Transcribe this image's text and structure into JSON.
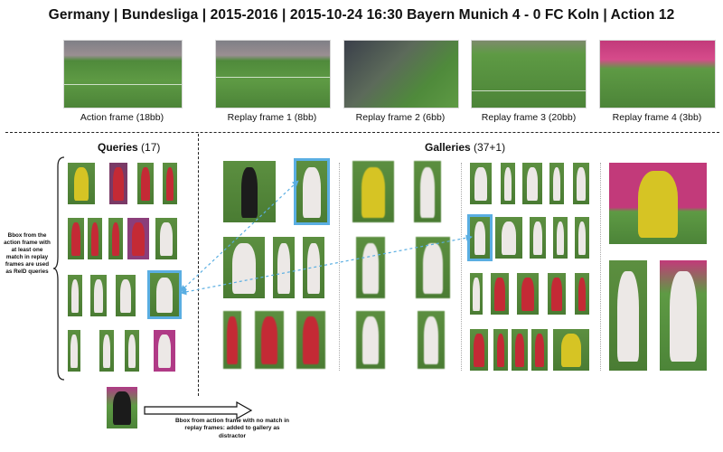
{
  "title": "Germany | Bundesliga | 2015-2016 | 2015-10-24 16:30 Bayern Munich 4 - 0 FC Koln | Action 12",
  "frames": [
    {
      "caption": "Action frame (18bb)"
    },
    {
      "caption": "Replay frame 1 (8bb)"
    },
    {
      "caption": "Replay frame 2 (6bb)"
    },
    {
      "caption": "Replay frame 3 (20bb)"
    },
    {
      "caption": "Replay frame 4 (3bb)"
    }
  ],
  "queries": {
    "label": "Queries",
    "count": "(17)"
  },
  "galleries": {
    "label": "Galleries",
    "count": "(37+1)"
  },
  "left_note": "Bbox from the action frame with at least one match in replay frames are used as ReID queries",
  "bottom_note": "Bbox from action frame with no match in replay frames: added to gallery as distractor"
}
